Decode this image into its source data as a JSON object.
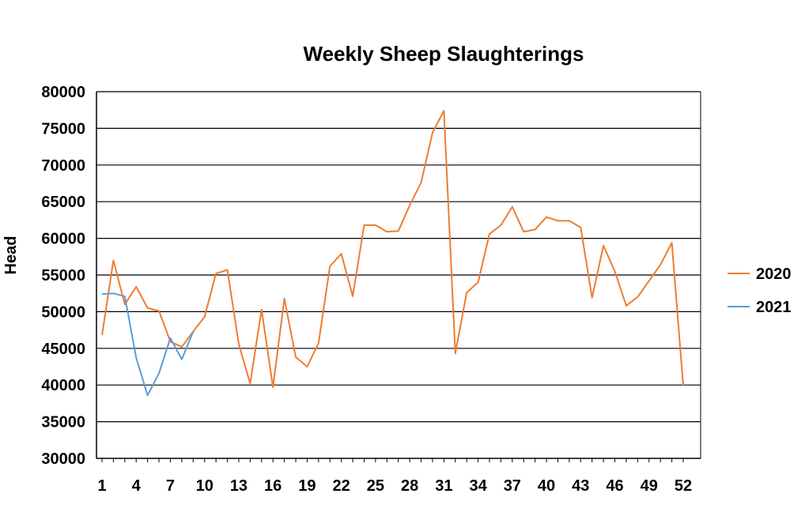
{
  "chart_data": {
    "type": "line",
    "title": "Weekly Sheep Slaughterings",
    "xlabel": "",
    "ylabel": "Head",
    "ylim": [
      30000,
      80000
    ],
    "yticks": [
      30000,
      35000,
      40000,
      45000,
      50000,
      55000,
      60000,
      65000,
      70000,
      75000,
      80000
    ],
    "xticks": [
      1,
      4,
      7,
      10,
      13,
      16,
      19,
      22,
      25,
      28,
      31,
      34,
      37,
      40,
      43,
      46,
      49,
      52
    ],
    "grid": true,
    "legend_position": "right",
    "series": [
      {
        "name": "2020",
        "color": "#ed7d31",
        "x": [
          1,
          2,
          3,
          4,
          5,
          6,
          7,
          8,
          9,
          10,
          11,
          12,
          13,
          14,
          15,
          16,
          17,
          18,
          19,
          20,
          21,
          22,
          23,
          24,
          25,
          26,
          27,
          28,
          29,
          30,
          31,
          32,
          33,
          34,
          35,
          36,
          37,
          38,
          39,
          40,
          41,
          42,
          43,
          44,
          45,
          46,
          47,
          48,
          49,
          50,
          51,
          52
        ],
        "values": [
          46800,
          57000,
          51000,
          53400,
          50500,
          50100,
          45900,
          45200,
          47300,
          49300,
          55200,
          55700,
          45600,
          40200,
          50300,
          39700,
          51800,
          43800,
          42500,
          45700,
          56200,
          57900,
          52100,
          61800,
          61800,
          60900,
          61000,
          64500,
          67600,
          74400,
          77400,
          44300,
          52600,
          54000,
          60600,
          61800,
          64300,
          60900,
          61200,
          62900,
          62400,
          62400,
          61500,
          51900,
          59000,
          55500,
          50800,
          52000,
          54200,
          56400,
          59400,
          39900
        ]
      },
      {
        "name": "2021",
        "color": "#5b9bd5",
        "x": [
          1,
          2,
          3,
          4,
          5,
          6,
          7,
          8,
          9
        ],
        "values": [
          52400,
          52500,
          52100,
          43700,
          38600,
          41600,
          46400,
          43500,
          47300
        ]
      }
    ]
  }
}
